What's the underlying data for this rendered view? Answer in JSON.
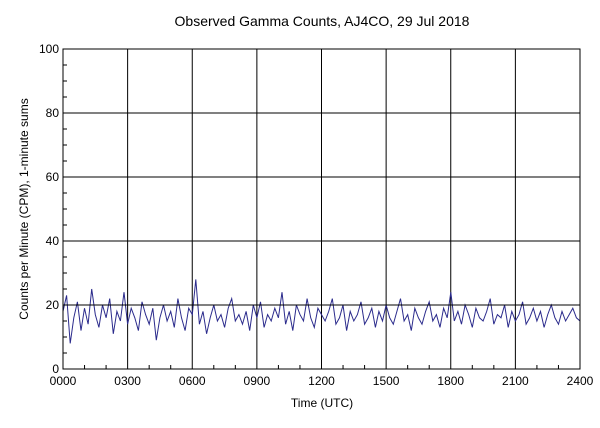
{
  "chart_data": {
    "type": "line",
    "title": "Observed Gamma Counts, AJ4CO, 29 Jul 2018",
    "xlabel": "Time (UTC)",
    "ylabel": "Counts per Minute (CPM), 1-minute sums",
    "x_tick_labels": [
      "0000",
      "0300",
      "0600",
      "0900",
      "1200",
      "1500",
      "1800",
      "2100",
      "2400"
    ],
    "y_tick_labels": [
      "0",
      "20",
      "40",
      "60",
      "80",
      "100"
    ],
    "xlim": [
      0,
      1440
    ],
    "ylim": [
      0,
      100
    ],
    "x_unit": "minutes",
    "grid": true,
    "reference_line": 20,
    "series": [
      {
        "color": "#2b2b8c",
        "x": [
          0,
          10,
          20,
          30,
          40,
          50,
          60,
          70,
          80,
          90,
          100,
          110,
          120,
          130,
          140,
          150,
          160,
          170,
          180,
          190,
          200,
          210,
          220,
          230,
          240,
          250,
          260,
          270,
          280,
          290,
          300,
          310,
          320,
          330,
          340,
          350,
          360,
          370,
          380,
          390,
          400,
          410,
          420,
          430,
          440,
          450,
          460,
          470,
          480,
          490,
          500,
          510,
          520,
          530,
          540,
          550,
          560,
          570,
          580,
          590,
          600,
          610,
          620,
          630,
          640,
          650,
          660,
          670,
          680,
          690,
          700,
          710,
          720,
          730,
          740,
          750,
          760,
          770,
          780,
          790,
          800,
          810,
          820,
          830,
          840,
          850,
          860,
          870,
          880,
          890,
          900,
          910,
          920,
          930,
          940,
          950,
          960,
          970,
          980,
          990,
          1000,
          1010,
          1020,
          1030,
          1040,
          1050,
          1060,
          1070,
          1080,
          1090,
          1100,
          1110,
          1120,
          1130,
          1140,
          1150,
          1160,
          1170,
          1180,
          1190,
          1200,
          1210,
          1220,
          1230,
          1240,
          1250,
          1260,
          1270,
          1280,
          1290,
          1300,
          1310,
          1320,
          1330,
          1340,
          1350,
          1360,
          1370,
          1380,
          1390,
          1400,
          1410,
          1420,
          1430,
          1440
        ],
        "y": [
          18,
          23,
          8,
          16,
          21,
          12,
          19,
          14,
          25,
          17,
          13,
          20,
          16,
          22,
          11,
          18,
          15,
          24,
          14,
          19,
          16,
          12,
          21,
          17,
          14,
          19,
          9,
          16,
          20,
          15,
          18,
          13,
          22,
          16,
          12,
          19,
          17,
          28,
          14,
          18,
          11,
          16,
          20,
          15,
          17,
          13,
          19,
          22,
          15,
          17,
          14,
          18,
          12,
          20,
          16,
          21,
          13,
          17,
          15,
          19,
          16,
          24,
          14,
          18,
          12,
          20,
          17,
          15,
          22,
          16,
          13,
          19,
          17,
          15,
          18,
          22,
          14,
          16,
          20,
          12,
          18,
          15,
          17,
          21,
          14,
          16,
          19,
          13,
          18,
          15,
          20,
          16,
          14,
          18,
          22,
          15,
          17,
          12,
          19,
          16,
          14,
          18,
          21,
          15,
          17,
          13,
          19,
          16,
          24,
          15,
          18,
          14,
          20,
          17,
          13,
          19,
          16,
          15,
          18,
          22,
          14,
          17,
          16,
          20,
          13,
          18,
          15,
          17,
          21,
          14,
          16,
          19,
          15,
          18,
          13,
          17,
          20,
          16,
          14,
          18,
          15,
          17,
          19,
          16,
          15
        ]
      }
    ]
  }
}
